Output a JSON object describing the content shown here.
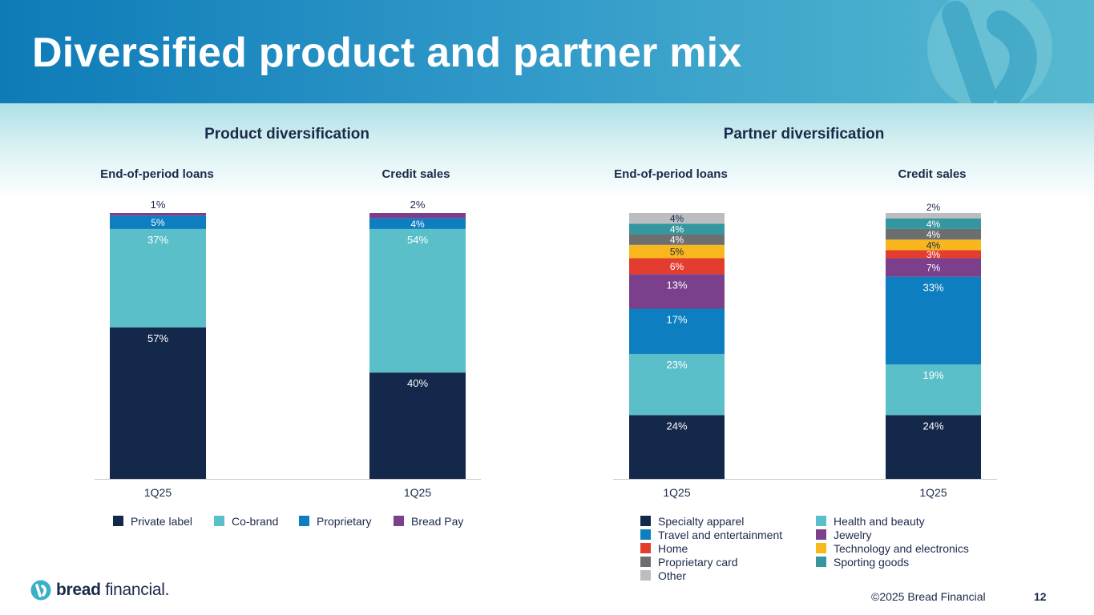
{
  "title": "Diversified product and partner mix",
  "brand": {
    "name_bold": "bread",
    "name_light": "financial",
    "mark": "."
  },
  "footer": {
    "copyright": "©2025 Bread Financial",
    "page": "12"
  },
  "colors": {
    "private_label": "#14284b",
    "co_brand": "#5bbfca",
    "proprietary": "#0d7ec0",
    "bread_pay": "#7b3f8c",
    "specialty_apparel": "#14284b",
    "health_beauty": "#5bbfca",
    "travel_entertainment": "#0d7ec0",
    "jewelry": "#7b3f8c",
    "home": "#e23d2e",
    "technology_electronics": "#f7b71d",
    "proprietary_card": "#6d6e70",
    "sporting_goods": "#34979f",
    "other": "#bcbdc0"
  },
  "product": {
    "section_title": "Product diversification",
    "loans_label": "End-of-period loans",
    "sales_label": "Credit sales"
  },
  "partner": {
    "section_title": "Partner diversification",
    "loans_label": "End-of-period loans",
    "sales_label": "Credit sales"
  },
  "product_legend": [
    {
      "label": "Private label",
      "color": "#14284b"
    },
    {
      "label": "Co-brand",
      "color": "#5bbfca"
    },
    {
      "label": "Proprietary",
      "color": "#0d7ec0"
    },
    {
      "label": "Bread Pay",
      "color": "#7b3f8c"
    }
  ],
  "partner_legend": [
    {
      "label": "Specialty apparel",
      "color": "#14284b"
    },
    {
      "label": "Health and beauty",
      "color": "#5bbfca"
    },
    {
      "label": "Travel and entertainment",
      "color": "#0d7ec0"
    },
    {
      "label": "Jewelry",
      "color": "#7b3f8c"
    },
    {
      "label": "Home",
      "color": "#e23d2e"
    },
    {
      "label": "Technology and electronics",
      "color": "#f7b71d"
    },
    {
      "label": "Proprietary card",
      "color": "#6d6e70"
    },
    {
      "label": "Sporting goods",
      "color": "#34979f"
    },
    {
      "label": "Other",
      "color": "#bcbdc0"
    }
  ],
  "chart_data": [
    {
      "type": "bar",
      "stacked": true,
      "title": "Product diversification",
      "categories": [
        "1Q25",
        "1Q25"
      ],
      "category_groups": [
        "End-of-period loans",
        "Credit sales"
      ],
      "ylim": [
        0,
        100
      ],
      "series": [
        {
          "name": "Private label",
          "color": "#14284b",
          "values": [
            57,
            40
          ],
          "labels": [
            "57%",
            "40%"
          ]
        },
        {
          "name": "Co-brand",
          "color": "#5bbfca",
          "values": [
            37,
            54
          ],
          "labels": [
            "37%",
            "54%"
          ]
        },
        {
          "name": "Proprietary",
          "color": "#0d7ec0",
          "values": [
            5,
            4
          ],
          "labels": [
            "5%",
            "4%"
          ]
        },
        {
          "name": "Bread Pay",
          "color": "#7b3f8c",
          "values": [
            1,
            2
          ],
          "labels": [
            "1%",
            "2%"
          ]
        }
      ]
    },
    {
      "type": "bar",
      "stacked": true,
      "title": "Partner diversification",
      "categories": [
        "1Q25",
        "1Q25"
      ],
      "category_groups": [
        "End-of-period loans",
        "Credit sales"
      ],
      "ylim": [
        0,
        100
      ],
      "series": [
        {
          "name": "Specialty apparel",
          "color": "#14284b",
          "values": [
            24,
            24
          ],
          "labels": [
            "24%",
            "24%"
          ]
        },
        {
          "name": "Health and beauty",
          "color": "#5bbfca",
          "values": [
            23,
            19
          ],
          "labels": [
            "23%",
            "19%"
          ]
        },
        {
          "name": "Travel and entertainment",
          "color": "#0d7ec0",
          "values": [
            17,
            33
          ],
          "labels": [
            "17%",
            "33%"
          ]
        },
        {
          "name": "Jewelry",
          "color": "#7b3f8c",
          "values": [
            13,
            7
          ],
          "labels": [
            "13%",
            "7%"
          ]
        },
        {
          "name": "Home",
          "color": "#e23d2e",
          "values": [
            6,
            3
          ],
          "labels": [
            "6%",
            "3%"
          ]
        },
        {
          "name": "Technology and electronics",
          "color": "#f7b71d",
          "values": [
            5,
            4
          ],
          "labels": [
            "5%",
            "4%"
          ]
        },
        {
          "name": "Proprietary card",
          "color": "#6d6e70",
          "values": [
            4,
            4
          ],
          "labels": [
            "4%",
            "4%"
          ]
        },
        {
          "name": "Sporting goods",
          "color": "#34979f",
          "values": [
            4,
            4
          ],
          "labels": [
            "4%",
            "4%"
          ]
        },
        {
          "name": "Other",
          "color": "#bcbdc0",
          "values": [
            4,
            2
          ],
          "labels": [
            "4%",
            "2%"
          ]
        }
      ]
    }
  ]
}
